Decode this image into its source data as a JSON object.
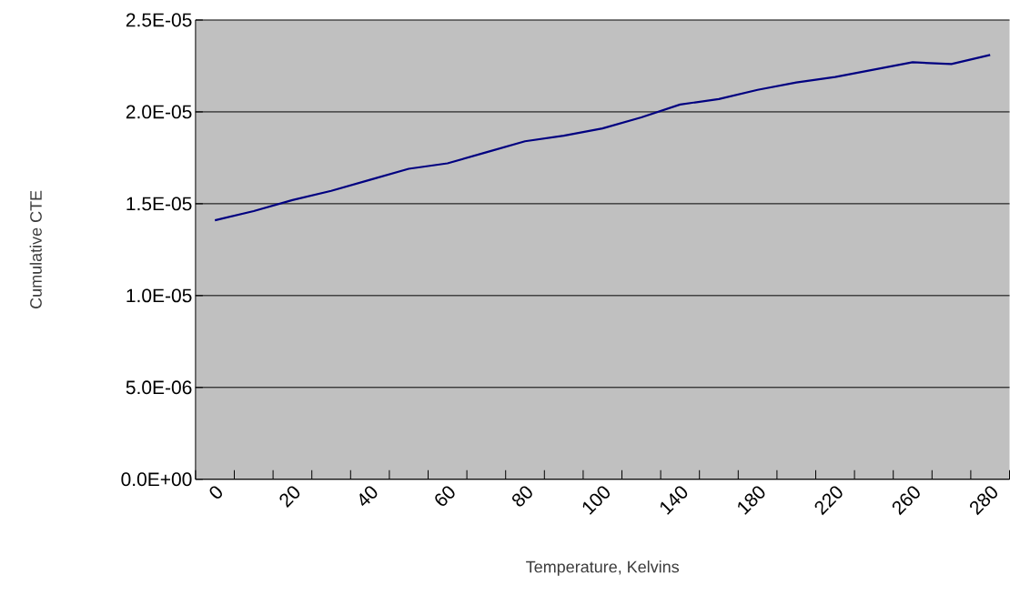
{
  "chart_data": {
    "type": "line",
    "xlabel": "Temperature, Kelvins",
    "ylabel": "Cumulative CTE",
    "categories": [
      "0",
      null,
      "20",
      null,
      "40",
      null,
      "60",
      null,
      "80",
      null,
      "100",
      null,
      "140",
      null,
      "180",
      null,
      "220",
      null,
      "260",
      null,
      "280"
    ],
    "series": [
      {
        "color": "#000080",
        "values": [
          1.41e-05,
          1.46e-05,
          1.52e-05,
          1.57e-05,
          1.63e-05,
          1.69e-05,
          1.72e-05,
          1.78e-05,
          1.84e-05,
          1.87e-05,
          1.91e-05,
          1.97e-05,
          2.04e-05,
          2.07e-05,
          2.12e-05,
          2.16e-05,
          2.19e-05,
          2.23e-05,
          2.27e-05,
          2.26e-05,
          2.31e-05
        ]
      }
    ],
    "ylim": [
      0,
      2.5e-05
    ],
    "yticks": [
      {
        "value": 0,
        "label": "0.0E+00"
      },
      {
        "value": 5e-06,
        "label": "5.0E-06"
      },
      {
        "value": 1e-05,
        "label": "1.0E-05"
      },
      {
        "value": 1.5e-05,
        "label": "1.5E-05"
      },
      {
        "value": 2e-05,
        "label": "2.0E-05"
      },
      {
        "value": 2.5e-05,
        "label": "2.5E-05"
      }
    ],
    "grid": "y",
    "marker": "none",
    "line_style": "solid"
  }
}
